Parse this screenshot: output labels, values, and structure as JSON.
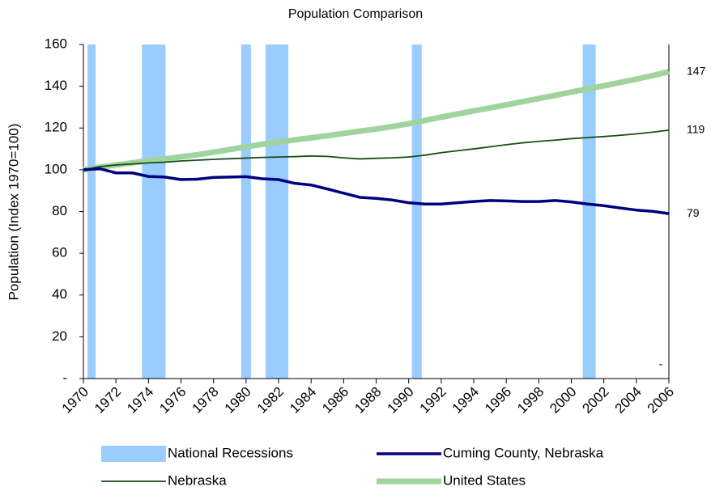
{
  "chart_data": {
    "type": "line",
    "title": "Population Comparison",
    "y_label": "Population (Index 1970=100)",
    "x": [
      1970,
      1971,
      1972,
      1973,
      1974,
      1975,
      1976,
      1977,
      1978,
      1979,
      1980,
      1981,
      1982,
      1983,
      1984,
      1985,
      1986,
      1987,
      1988,
      1989,
      1990,
      1991,
      1992,
      1993,
      1994,
      1995,
      1996,
      1997,
      1998,
      1999,
      2000,
      2001,
      2002,
      2003,
      2004,
      2005,
      2006
    ],
    "xlim": [
      1970,
      2006
    ],
    "xticks": [
      1970,
      1972,
      1974,
      1976,
      1978,
      1980,
      1982,
      1984,
      1986,
      1988,
      1990,
      1992,
      1994,
      1996,
      1998,
      2000,
      2002,
      2004,
      2006
    ],
    "ylim": [
      0,
      160
    ],
    "yticks": [
      {
        "value": 0,
        "label": "-"
      },
      20,
      40,
      60,
      80,
      100,
      120,
      140,
      160
    ],
    "recessions": {
      "name": "National Recessions",
      "color": "#99ccff",
      "ranges": [
        [
          1970.25,
          1970.75
        ],
        [
          1973.6,
          1975.05
        ],
        [
          1979.7,
          1980.3
        ],
        [
          1981.2,
          1982.6
        ],
        [
          1990.2,
          1990.8
        ],
        [
          2000.7,
          2001.5
        ]
      ]
    },
    "series": [
      {
        "name": "Cuming County, Nebraska",
        "color": "#000080",
        "width": 3.5,
        "values": [
          100,
          100.5,
          98.5,
          98.5,
          96.8,
          96.5,
          95.3,
          95.5,
          96.3,
          96.5,
          96.7,
          95.7,
          95.3,
          93.5,
          92.7,
          90.8,
          88.8,
          86.8,
          86.3,
          85.5,
          84.2,
          83.6,
          83.6,
          84.2,
          84.8,
          85.3,
          85.1,
          84.8,
          84.8,
          85.3,
          84.6,
          83.6,
          82.8,
          81.7,
          80.7,
          80.1,
          79
        ]
      },
      {
        "name": "Nebraska",
        "color": "#1a4d1a",
        "width": 1.8,
        "values": [
          100,
          101.5,
          102.3,
          102.8,
          103.3,
          103.6,
          104.2,
          104.6,
          105,
          105.3,
          105.6,
          105.9,
          106.1,
          106.3,
          106.6,
          106.4,
          105.7,
          105.2,
          105.5,
          105.7,
          106.1,
          107,
          108.2,
          109.1,
          110,
          111,
          112,
          112.9,
          113.6,
          114.2,
          114.9,
          115.4,
          115.9,
          116.5,
          117.2,
          118,
          119
        ]
      },
      {
        "name": "United States",
        "color": "#9fd49f",
        "width": 7,
        "values": [
          100,
          101.2,
          102.3,
          103.3,
          104.3,
          105.2,
          106.2,
          107.2,
          108.4,
          109.7,
          111,
          112.2,
          113.3,
          114.3,
          115.3,
          116.3,
          117.4,
          118.5,
          119.5,
          120.7,
          122,
          123.6,
          125.2,
          126.7,
          128.2,
          129.6,
          131.1,
          132.6,
          134.1,
          135.6,
          137.2,
          138.7,
          140.2,
          141.8,
          143.4,
          145.1,
          147
        ]
      }
    ],
    "annotation": "-"
  }
}
